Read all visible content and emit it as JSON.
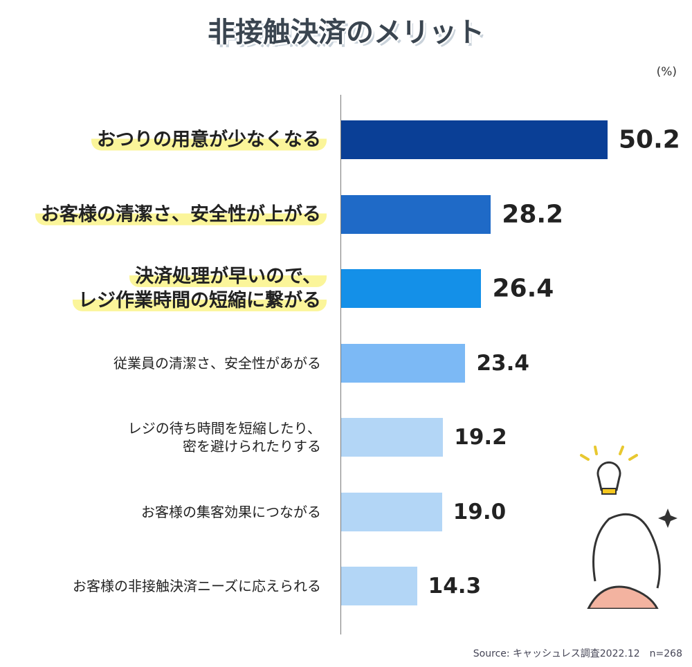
{
  "chart_data": {
    "type": "bar",
    "orientation": "horizontal",
    "title": "非接触決済のメリット",
    "unit_label": "(%)",
    "categories": [
      "おつりの用意が少なくなる",
      "お客様の清潔さ、安全性が上がる",
      "決済処理が早いので、\nレジ作業時間の短縮に繋がる",
      "従業員の清潔さ、安全性があがる",
      "レジの待ち時間を短縮したり、\n密を避けられたりする",
      "お客様の集客効果につながる",
      "お客様の非接触決済ニーズに応えられる"
    ],
    "values": [
      50.2,
      28.2,
      26.4,
      23.4,
      19.2,
      19.0,
      14.3
    ],
    "value_labels": [
      "50.2",
      "28.2",
      "26.4",
      "23.4",
      "19.2",
      "19.0",
      "14.3"
    ],
    "colors": [
      "#0a3f96",
      "#1f6ac7",
      "#1490e8",
      "#7cb9f5",
      "#b3d6f6",
      "#b3d6f6",
      "#b3d6f6"
    ],
    "source": "Source: キャッシュレス調査2022.12　n=268"
  }
}
